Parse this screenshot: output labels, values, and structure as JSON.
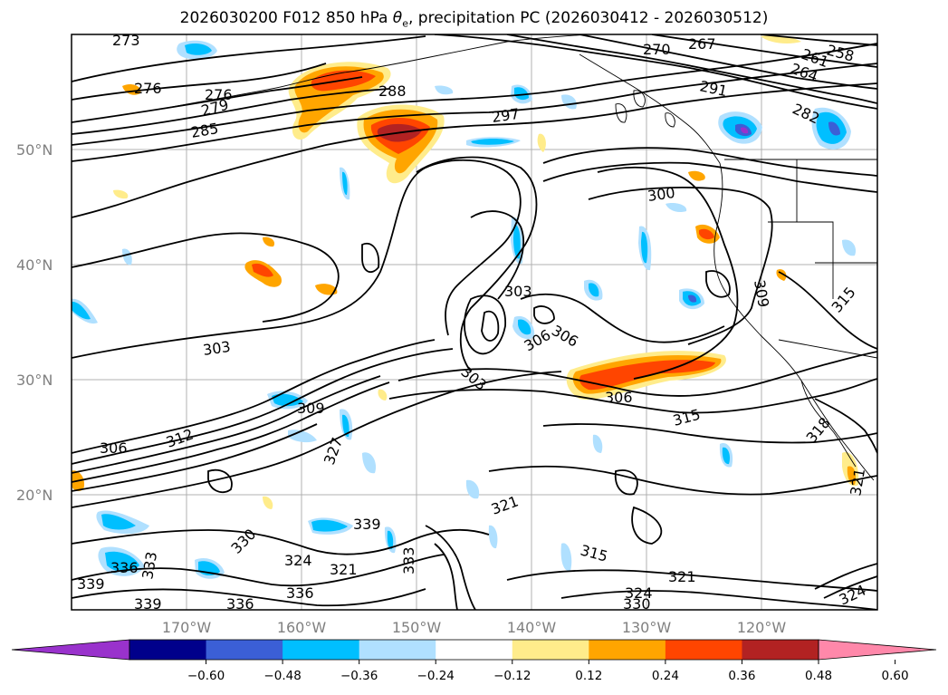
{
  "title_main": "2026030200 F012 850 hPa ",
  "title_sym": "θ",
  "title_sub": "e",
  "title_rest": ", precipitation PC (2026030412 - 2026030512)",
  "lat_labels": [
    "50°N",
    "40°N",
    "30°N",
    "20°N"
  ],
  "lon_labels": [
    "170°W",
    "160°W",
    "150°W",
    "140°W",
    "130°W",
    "120°W"
  ],
  "colorbar": {
    "colors": [
      "#9932cc",
      "#00008b",
      "#3b5fd6",
      "#00bfff",
      "#b0e0ff",
      "#ffffff",
      "#ffec8b",
      "#ffa500",
      "#ff4500",
      "#b22222",
      "#ff88aa"
    ],
    "ticks": [
      "−0.60",
      "−0.48",
      "−0.36",
      "−0.24",
      "−0.12",
      "0.12",
      "0.24",
      "0.36",
      "0.48",
      "0.60"
    ]
  },
  "contour_labels": [
    "273",
    "276",
    "276",
    "279",
    "285",
    "288",
    "297",
    "291",
    "270",
    "267",
    "264",
    "261",
    "258",
    "282",
    "300",
    "303",
    "303",
    "303",
    "306",
    "306",
    "306",
    "306",
    "309",
    "312",
    "315",
    "315",
    "315",
    "318",
    "321",
    "321",
    "321",
    "321",
    "324",
    "324",
    "324",
    "327",
    "330",
    "330",
    "333",
    "333",
    "336",
    "336",
    "336",
    "339",
    "339",
    "339",
    "309"
  ],
  "precip_colors": {
    "orange": "#ffa500",
    "red": "#ff4500",
    "darkred": "#b22222",
    "yellow": "#ffec8b",
    "lightblue": "#b0e0ff",
    "blue": "#00bfff",
    "medblue": "#3b5fd6",
    "purple": "#9932cc"
  }
}
